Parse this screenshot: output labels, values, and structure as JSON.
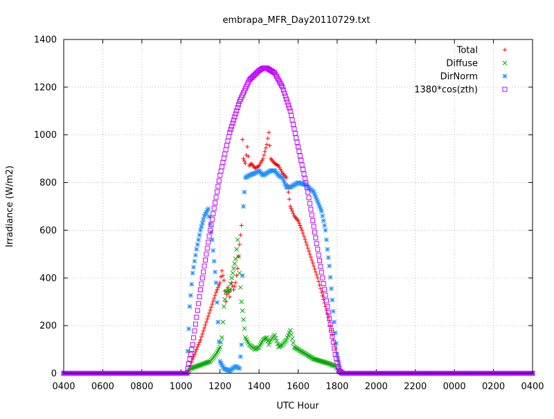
{
  "chart_data": {
    "type": "scatter",
    "title": "embrapa_MFR_Day20110729.txt",
    "xlabel": "UTC Hour",
    "ylabel": "Irradiance (W/m2)",
    "x_unit": "hours since 04:00 UTC (tick labels wrap at 2400)",
    "xlim": [
      0,
      24
    ],
    "ylim": [
      0,
      1400
    ],
    "xtick_labels": [
      "0400",
      "0600",
      "0800",
      "1000",
      "1200",
      "1400",
      "1600",
      "1800",
      "2000",
      "2200",
      "0000",
      "0200",
      "0400"
    ],
    "ytick_labels": [
      "0",
      "200",
      "400",
      "600",
      "800",
      "1000",
      "1200",
      "1400"
    ],
    "grid": true,
    "legend_position": "top-right",
    "series": [
      {
        "name": "Total",
        "marker": "plus",
        "color": "#ff0000",
        "points": [
          [
            0,
            0
          ],
          [
            6.3,
            0
          ],
          [
            6.45,
            20
          ],
          [
            6.6,
            60
          ],
          [
            6.8,
            100
          ],
          [
            7.0,
            140
          ],
          [
            7.2,
            190
          ],
          [
            7.4,
            240
          ],
          [
            7.6,
            290
          ],
          [
            7.8,
            340
          ],
          [
            8.0,
            380
          ],
          [
            8.1,
            430
          ],
          [
            8.2,
            390
          ],
          [
            8.3,
            300
          ],
          [
            8.4,
            360
          ],
          [
            8.5,
            320
          ],
          [
            8.6,
            380
          ],
          [
            8.7,
            350
          ],
          [
            8.8,
            380
          ],
          [
            8.9,
            440
          ],
          [
            9.0,
            540
          ],
          [
            9.1,
            620
          ],
          [
            9.15,
            980
          ],
          [
            9.2,
            900
          ],
          [
            9.3,
            880
          ],
          [
            9.4,
            950
          ],
          [
            9.5,
            870
          ],
          [
            9.6,
            880
          ],
          [
            9.8,
            860
          ],
          [
            10.0,
            870
          ],
          [
            10.2,
            900
          ],
          [
            10.4,
            960
          ],
          [
            10.5,
            1010
          ],
          [
            10.6,
            900
          ],
          [
            10.8,
            880
          ],
          [
            11.0,
            870
          ],
          [
            11.2,
            840
          ],
          [
            11.4,
            820
          ],
          [
            11.6,
            700
          ],
          [
            11.8,
            660
          ],
          [
            12.0,
            640
          ],
          [
            12.2,
            600
          ],
          [
            12.4,
            550
          ],
          [
            12.6,
            500
          ],
          [
            12.8,
            450
          ],
          [
            13.0,
            400
          ],
          [
            13.2,
            340
          ],
          [
            13.4,
            280
          ],
          [
            13.6,
            220
          ],
          [
            13.8,
            140
          ],
          [
            14.0,
            70
          ],
          [
            14.1,
            30
          ],
          [
            14.2,
            0
          ],
          [
            24,
            0
          ]
        ]
      },
      {
        "name": "Diffuse",
        "marker": "cross",
        "color": "#00aa00",
        "points": [
          [
            0,
            0
          ],
          [
            6.3,
            0
          ],
          [
            6.5,
            20
          ],
          [
            7.0,
            35
          ],
          [
            7.5,
            50
          ],
          [
            7.8,
            80
          ],
          [
            8.0,
            110
          ],
          [
            8.1,
            150
          ],
          [
            8.2,
            280
          ],
          [
            8.3,
            340
          ],
          [
            8.5,
            350
          ],
          [
            8.6,
            400
          ],
          [
            8.8,
            480
          ],
          [
            8.9,
            560
          ],
          [
            9.0,
            420
          ],
          [
            9.1,
            300
          ],
          [
            9.3,
            150
          ],
          [
            9.5,
            120
          ],
          [
            9.8,
            100
          ],
          [
            10.0,
            110
          ],
          [
            10.2,
            140
          ],
          [
            10.4,
            150
          ],
          [
            10.5,
            120
          ],
          [
            10.6,
            140
          ],
          [
            10.8,
            160
          ],
          [
            11.0,
            110
          ],
          [
            11.2,
            120
          ],
          [
            11.4,
            140
          ],
          [
            11.6,
            180
          ],
          [
            11.8,
            110
          ],
          [
            12.0,
            100
          ],
          [
            12.4,
            80
          ],
          [
            12.8,
            60
          ],
          [
            13.2,
            50
          ],
          [
            13.6,
            40
          ],
          [
            13.9,
            30
          ],
          [
            14.1,
            10
          ],
          [
            14.2,
            0
          ],
          [
            24,
            0
          ]
        ]
      },
      {
        "name": "DirNorm",
        "marker": "star",
        "color": "#1e90ff",
        "points": [
          [
            0,
            0
          ],
          [
            6.3,
            0
          ],
          [
            6.45,
            280
          ],
          [
            6.6,
            420
          ],
          [
            6.8,
            520
          ],
          [
            7.0,
            600
          ],
          [
            7.2,
            660
          ],
          [
            7.4,
            690
          ],
          [
            7.6,
            560
          ],
          [
            7.8,
            380
          ],
          [
            8.0,
            50
          ],
          [
            8.2,
            20
          ],
          [
            8.5,
            10
          ],
          [
            8.8,
            30
          ],
          [
            9.0,
            20
          ],
          [
            9.1,
            120
          ],
          [
            9.2,
            700
          ],
          [
            9.3,
            820
          ],
          [
            9.5,
            830
          ],
          [
            9.8,
            840
          ],
          [
            10.0,
            850
          ],
          [
            10.2,
            830
          ],
          [
            10.4,
            840
          ],
          [
            10.6,
            850
          ],
          [
            10.8,
            850
          ],
          [
            11.0,
            830
          ],
          [
            11.2,
            820
          ],
          [
            11.4,
            780
          ],
          [
            11.6,
            780
          ],
          [
            11.8,
            790
          ],
          [
            12.0,
            800
          ],
          [
            12.4,
            790
          ],
          [
            12.8,
            760
          ],
          [
            13.0,
            720
          ],
          [
            13.2,
            680
          ],
          [
            13.4,
            600
          ],
          [
            13.5,
            520
          ],
          [
            13.6,
            450
          ],
          [
            13.8,
            260
          ],
          [
            14.0,
            80
          ],
          [
            14.2,
            0
          ],
          [
            24,
            0
          ]
        ]
      },
      {
        "name": "1380*cos(zth)",
        "marker": "square",
        "color": "#bf00ff",
        "points": [
          [
            0,
            0
          ],
          [
            6.1,
            0
          ],
          [
            6.3,
            0
          ],
          [
            6.6,
            120
          ],
          [
            7.0,
            350
          ],
          [
            7.5,
            600
          ],
          [
            8.0,
            830
          ],
          [
            8.5,
            1010
          ],
          [
            9.0,
            1140
          ],
          [
            9.5,
            1230
          ],
          [
            10.0,
            1270
          ],
          [
            10.2,
            1280
          ],
          [
            10.4,
            1280
          ],
          [
            10.8,
            1260
          ],
          [
            11.2,
            1200
          ],
          [
            11.6,
            1100
          ],
          [
            12.0,
            950
          ],
          [
            12.5,
            760
          ],
          [
            13.0,
            520
          ],
          [
            13.5,
            280
          ],
          [
            13.9,
            80
          ],
          [
            14.1,
            10
          ],
          [
            14.3,
            0
          ],
          [
            24,
            0
          ]
        ]
      }
    ]
  }
}
